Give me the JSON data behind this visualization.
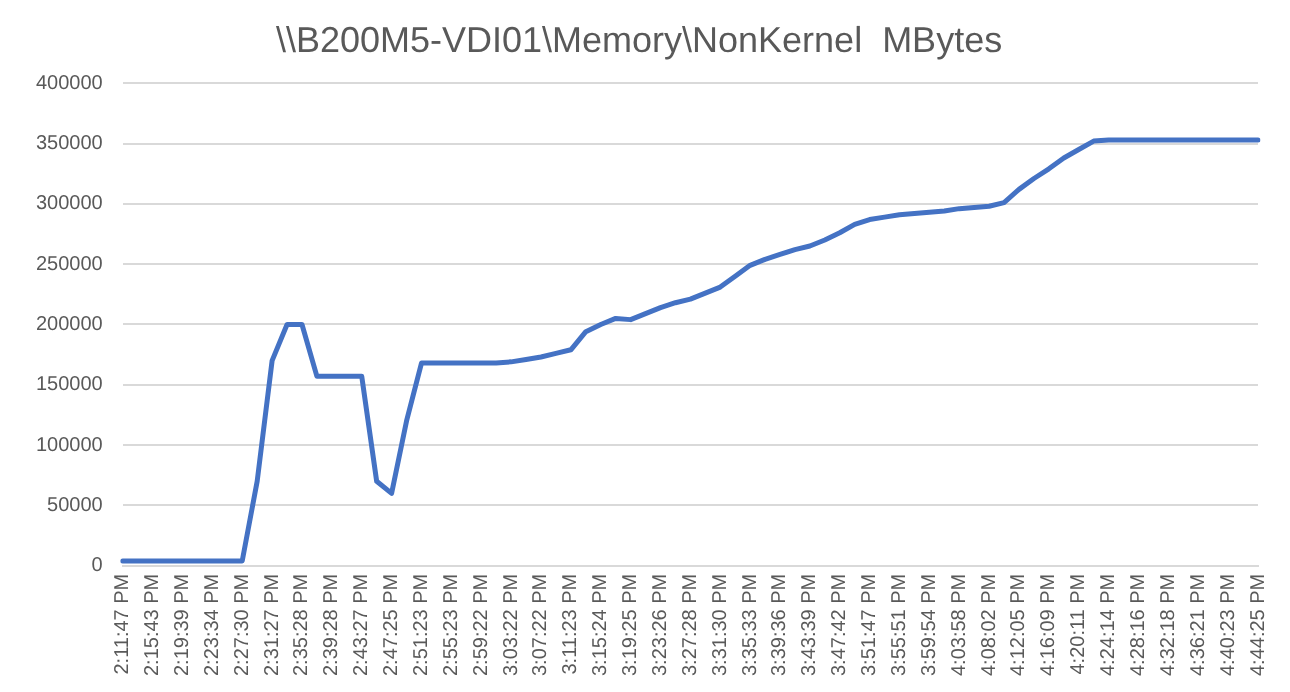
{
  "chart_data": {
    "type": "line",
    "title": "\\\\B200M5-VDI01\\Memory\\NonKernel  MBytes",
    "categories": [
      "2:11:47 PM",
      null,
      "2:15:43 PM",
      null,
      "2:19:39 PM",
      null,
      "2:23:34 PM",
      null,
      "2:27:30 PM",
      null,
      "2:31:27 PM",
      null,
      "2:35:28 PM",
      null,
      "2:39:28 PM",
      null,
      "2:43:27 PM",
      null,
      "2:47:25 PM",
      null,
      "2:51:23 PM",
      null,
      "2:55:23 PM",
      null,
      "2:59:22 PM",
      null,
      "3:03:22 PM",
      null,
      "3:07:22 PM",
      null,
      "3:11:23 PM",
      null,
      "3:15:24 PM",
      null,
      "3:19:25 PM",
      null,
      "3:23:26 PM",
      null,
      "3:27:28 PM",
      null,
      "3:31:30 PM",
      null,
      "3:35:33 PM",
      null,
      "3:39:36 PM",
      null,
      "3:43:39 PM",
      null,
      "3:47:42 PM",
      null,
      "3:51:47 PM",
      null,
      "3:55:51 PM",
      null,
      "3:59:54 PM",
      null,
      "4:03:58 PM",
      null,
      "4:08:02 PM",
      null,
      "4:12:05 PM",
      null,
      "4:16:09 PM",
      null,
      "4:20:11 PM",
      null,
      "4:24:14 PM",
      null,
      "4:28:16 PM",
      null,
      "4:32:18 PM",
      null,
      "4:36:21 PM",
      null,
      "4:40:23 PM",
      null,
      "4:44:25 PM"
    ],
    "series": [
      {
        "color": "#4472c4",
        "values": [
          4000,
          4000,
          4000,
          4000,
          4000,
          4000,
          4000,
          4000,
          4000,
          70000,
          170000,
          200000,
          200000,
          157000,
          157000,
          157000,
          157000,
          70000,
          60000,
          120000,
          168000,
          168000,
          168000,
          168000,
          168000,
          168000,
          169000,
          171000,
          173000,
          176000,
          179000,
          194000,
          200000,
          205000,
          204000,
          209000,
          214000,
          218000,
          221000,
          226000,
          231000,
          240000,
          249000,
          254000,
          258000,
          262000,
          265000,
          270000,
          276000,
          283000,
          287000,
          289000,
          291000,
          292000,
          293000,
          294000,
          296000,
          297000,
          298000,
          301000,
          312000,
          321000,
          329000,
          338000,
          345000,
          352000,
          353000,
          353000,
          353000,
          353000,
          353000,
          353000,
          353000,
          353000,
          353000,
          353000,
          353000
        ]
      }
    ],
    "ylim": [
      0,
      400000
    ],
    "yticks": [
      0,
      50000,
      100000,
      150000,
      200000,
      250000,
      300000,
      350000,
      400000
    ],
    "grid": "y",
    "legend": false,
    "marker": "none",
    "line_style": "solid"
  }
}
